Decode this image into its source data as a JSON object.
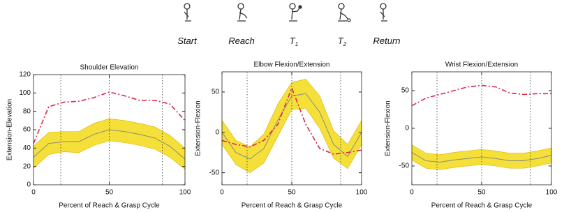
{
  "header": {
    "phases": [
      {
        "label": "Start"
      },
      {
        "label": "Reach"
      },
      {
        "label": "T",
        "sub": "1"
      },
      {
        "label": "T",
        "sub": "2"
      },
      {
        "label": "Return"
      }
    ]
  },
  "chart_data": [
    {
      "type": "line",
      "title": "Shoulder Elevation",
      "xlabel": "Percent of Reach & Grasp Cycle",
      "ylabel": "Extension-Elevation",
      "x": [
        0,
        10,
        20,
        30,
        40,
        50,
        60,
        70,
        80,
        90,
        100
      ],
      "xlim": [
        0,
        100
      ],
      "xticks": [
        0,
        50,
        100
      ],
      "ylim": [
        0,
        120
      ],
      "yticks": [
        0,
        20,
        40,
        60,
        80,
        100,
        120
      ],
      "vlines": [
        18,
        50,
        85
      ],
      "series": [
        {
          "color": "#8a8a7a",
          "values": [
            30,
            45,
            47,
            47,
            55,
            60,
            58,
            55,
            51,
            42,
            28
          ],
          "band": {
            "color": "#f5e03a",
            "lower": [
              18,
              33,
              36,
              35,
              43,
              48,
              46,
              43,
              39,
              30,
              17
            ],
            "upper": [
              42,
              57,
              58,
              58,
              67,
              72,
              70,
              67,
              63,
              54,
              40
            ]
          }
        },
        {
          "color": "#d8284a",
          "style": "dashdot",
          "values": [
            45,
            85,
            90,
            91,
            95,
            101,
            97,
            92,
            92,
            88,
            70
          ]
        }
      ]
    },
    {
      "type": "line",
      "title": "Elbow Flexion/Extension",
      "xlabel": "Percent of Reach & Grasp Cycle",
      "ylabel": "Extension-Flexion",
      "x": [
        0,
        10,
        20,
        30,
        40,
        50,
        60,
        70,
        80,
        90,
        100
      ],
      "xlim": [
        0,
        100
      ],
      "xticks": [
        0,
        50,
        100
      ],
      "ylim": [
        -65,
        75
      ],
      "yticks": [
        -50,
        0,
        50
      ],
      "vlines": [
        18,
        50,
        85
      ],
      "series": [
        {
          "color": "#8a8a7a",
          "values": [
            0,
            -25,
            -33,
            -20,
            15,
            45,
            48,
            25,
            -15,
            -30,
            0
          ],
          "band": {
            "color": "#f5e03a",
            "lower": [
              -15,
              -40,
              -50,
              -38,
              -5,
              28,
              30,
              5,
              -32,
              -45,
              -15
            ],
            "upper": [
              15,
              -10,
              -18,
              -2,
              35,
              62,
              66,
              45,
              2,
              -15,
              15
            ]
          }
        },
        {
          "color": "#d8284a",
          "style": "dashdot",
          "values": [
            -10,
            -15,
            -18,
            -10,
            10,
            55,
            10,
            -20,
            -27,
            -25,
            -22
          ]
        }
      ]
    },
    {
      "type": "line",
      "title": "Wrist Flexion/Extension",
      "xlabel": "Percent of Reach & Grasp Cycle",
      "ylabel": "Extension-Flexion",
      "x": [
        0,
        10,
        20,
        30,
        40,
        50,
        60,
        70,
        80,
        90,
        100
      ],
      "xlim": [
        0,
        100
      ],
      "xticks": [
        0,
        50,
        100
      ],
      "ylim": [
        -75,
        75
      ],
      "yticks": [
        -50,
        0,
        50
      ],
      "vlines": [
        18,
        50,
        85
      ],
      "series": [
        {
          "color": "#8a8a7a",
          "values": [
            -32,
            -43,
            -45,
            -42,
            -40,
            -38,
            -40,
            -43,
            -43,
            -40,
            -36
          ],
          "band": {
            "color": "#f5e03a",
            "lower": [
              -42,
              -53,
              -55,
              -52,
              -50,
              -48,
              -50,
              -53,
              -53,
              -50,
              -46
            ],
            "upper": [
              -22,
              -33,
              -35,
              -32,
              -30,
              -28,
              -30,
              -33,
              -33,
              -30,
              -26
            ]
          }
        },
        {
          "color": "#d8284a",
          "style": "dashdot",
          "values": [
            30,
            40,
            45,
            50,
            55,
            57,
            55,
            47,
            45,
            46,
            46
          ]
        }
      ]
    }
  ]
}
